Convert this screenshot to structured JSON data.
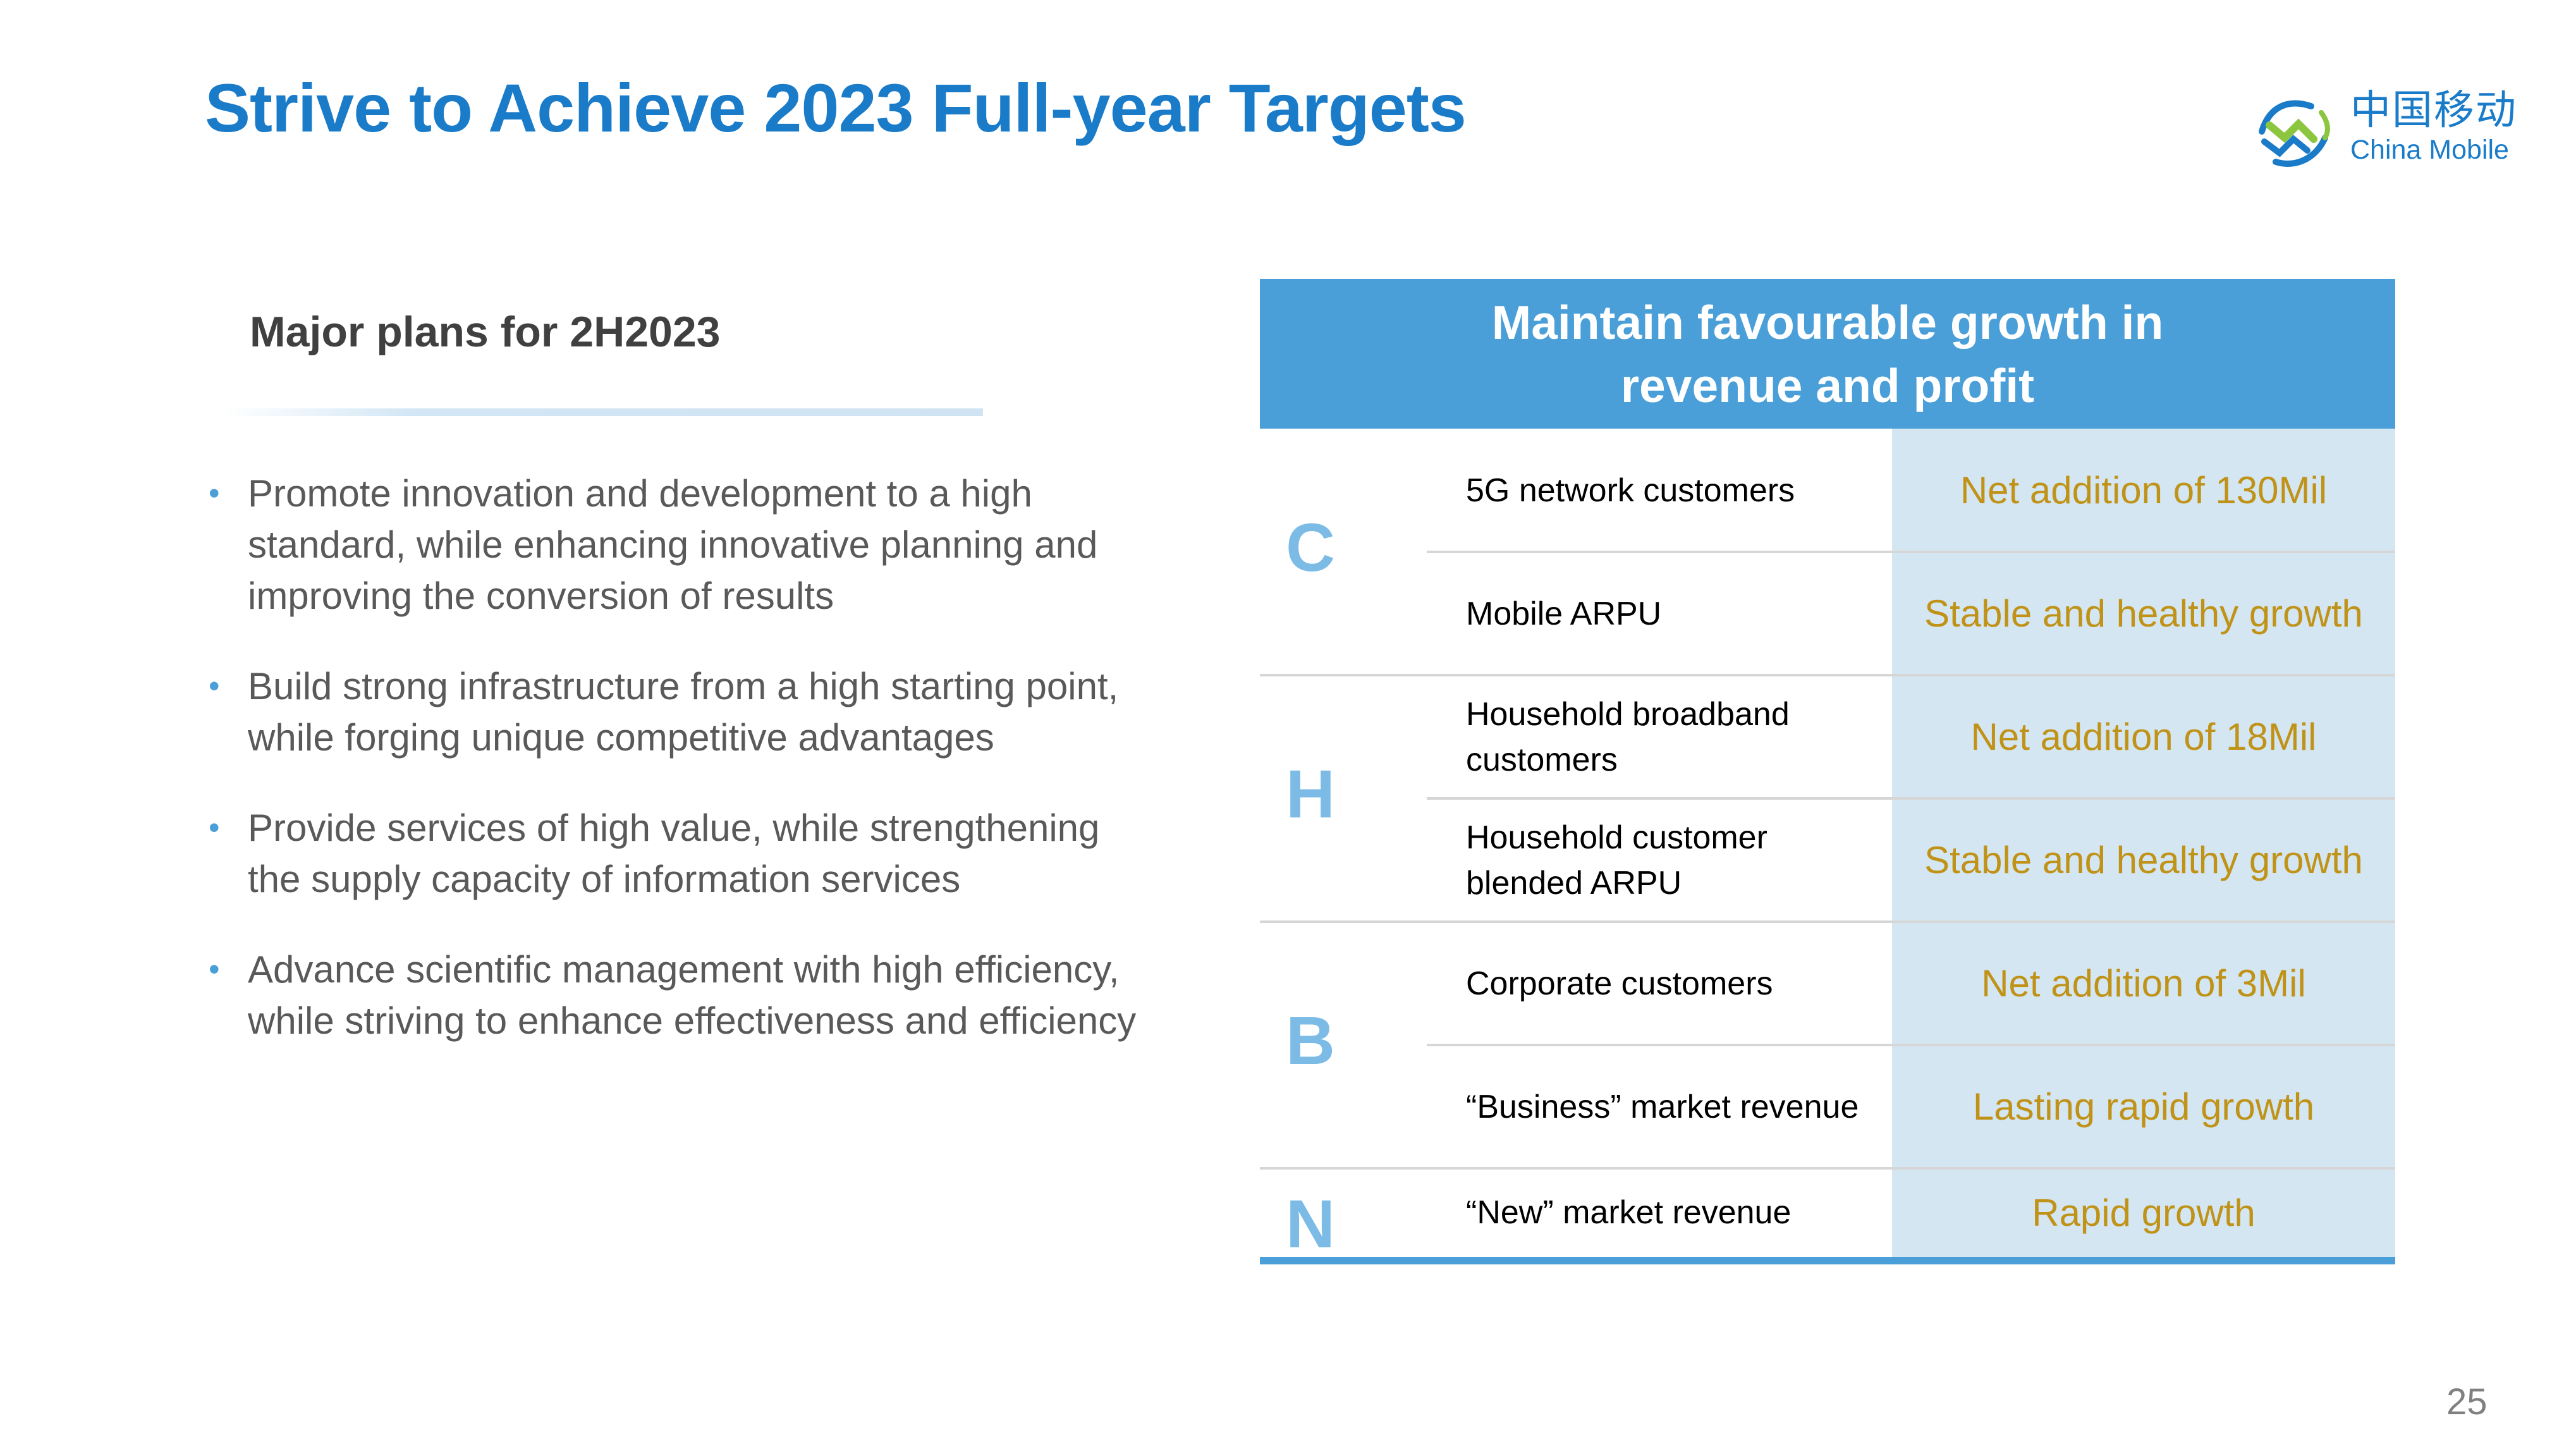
{
  "slide": {
    "title": "Strive to Achieve 2023 Full-year Targets",
    "page_number": "25"
  },
  "logo": {
    "name_cn": "中国移动",
    "name_en": "China Mobile",
    "colors": {
      "blue": "#1a7bc9",
      "green": "#8cc63f"
    }
  },
  "plans": {
    "heading": "Major plans for 2H2023",
    "items": [
      "Promote innovation and development to a high standard, while enhancing innovative planning and improving the conversion of results",
      "Build strong infrastructure from a high starting point, while forging unique competitive advantages",
      "Provide services of high value, while strengthening the supply capacity of information services",
      "Advance scientific management with high efficiency, while striving to enhance effectiveness and efficiency"
    ]
  },
  "targets": {
    "header": "Maintain favourable growth in revenue and profit",
    "groups": [
      "C",
      "H",
      "B",
      "N"
    ],
    "rows": [
      {
        "group": "C",
        "metric": "5G network customers",
        "target": "Net addition of 130Mil"
      },
      {
        "group": "C",
        "metric": "Mobile ARPU",
        "target": "Stable and healthy growth"
      },
      {
        "group": "H",
        "metric": "Household broadband customers",
        "target": "Net addition of 18Mil"
      },
      {
        "group": "H",
        "metric": "Household customer blended ARPU",
        "target": "Stable and healthy growth"
      },
      {
        "group": "B",
        "metric": "Corporate customers",
        "target": "Net addition of 3Mil"
      },
      {
        "group": "B",
        "metric": "“Business” market revenue",
        "target": "Lasting rapid growth"
      },
      {
        "group": "N",
        "metric": "“New” market revenue",
        "target": "Rapid growth"
      }
    ]
  },
  "colors": {
    "title_blue": "#1a7bc9",
    "header_blue": "#4a9fd8",
    "value_bg": "#d4e6f2",
    "target_gold": "#c09318",
    "letter_blue": "#7bbbe5"
  }
}
